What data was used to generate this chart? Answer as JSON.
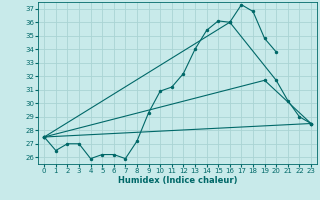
{
  "xlabel": "Humidex (Indice chaleur)",
  "bg_color": "#c8eaea",
  "grid_color": "#aad4d4",
  "line_color": "#006868",
  "xlim": [
    -0.5,
    23.5
  ],
  "ylim": [
    25.5,
    37.5
  ],
  "yticks": [
    26,
    27,
    28,
    29,
    30,
    31,
    32,
    33,
    34,
    35,
    36,
    37
  ],
  "xticks": [
    0,
    1,
    2,
    3,
    4,
    5,
    6,
    7,
    8,
    9,
    10,
    11,
    12,
    13,
    14,
    15,
    16,
    17,
    18,
    19,
    20,
    21,
    22,
    23
  ],
  "line1_x": [
    0,
    1,
    2,
    3,
    4,
    5,
    6,
    7,
    8,
    9,
    10,
    11,
    12,
    13,
    14,
    15,
    16,
    17,
    18,
    19,
    20
  ],
  "line1_y": [
    27.5,
    26.5,
    27.0,
    27.0,
    25.9,
    26.2,
    26.2,
    25.9,
    27.2,
    29.3,
    30.9,
    31.2,
    32.2,
    34.0,
    35.4,
    36.1,
    36.0,
    37.3,
    36.8,
    34.8,
    33.8
  ],
  "line2_x": [
    0,
    16,
    20,
    21,
    22,
    23
  ],
  "line2_y": [
    27.5,
    36.0,
    31.7,
    30.2,
    29.0,
    28.5
  ],
  "line3_x": [
    0,
    19,
    23
  ],
  "line3_y": [
    27.5,
    31.7,
    28.5
  ],
  "line4_x": [
    0,
    23
  ],
  "line4_y": [
    27.5,
    28.5
  ]
}
